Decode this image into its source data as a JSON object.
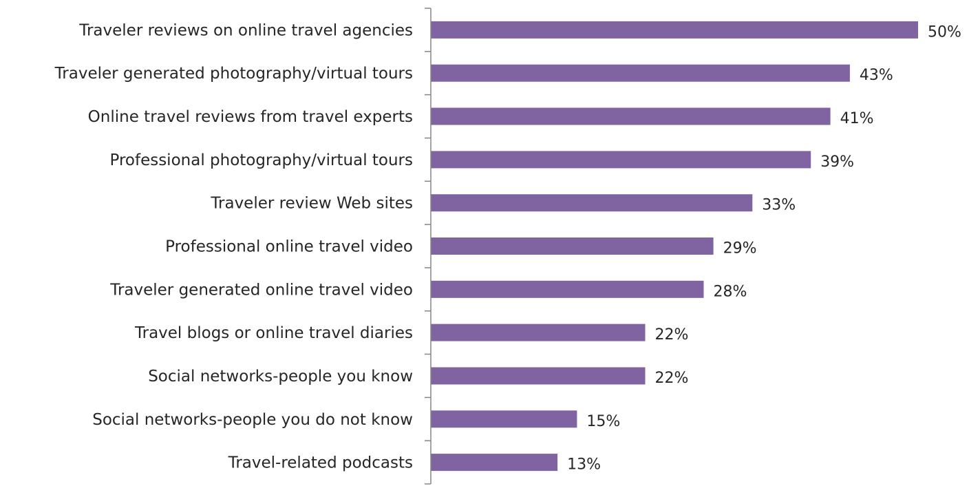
{
  "chart_data": {
    "type": "bar",
    "orientation": "horizontal",
    "categories": [
      "Traveler reviews on online travel agencies",
      "Traveler generated photography/virtual tours",
      "Online travel reviews from travel experts",
      "Professional photography/virtual tours",
      "Traveler review Web sites",
      "Professional online travel video",
      "Traveler generated online travel video",
      "Travel blogs or online travel diaries",
      "Social networks-people you know",
      "Social networks-people you do not know",
      "Travel-related podcasts"
    ],
    "values": [
      50,
      43,
      41,
      39,
      33,
      29,
      28,
      22,
      22,
      15,
      13
    ],
    "value_labels": [
      "50%",
      "43%",
      "41%",
      "39%",
      "33%",
      "29%",
      "28%",
      "22%",
      "22%",
      "15%",
      "13%"
    ],
    "unit": "%",
    "xlim": [
      0,
      50
    ],
    "grid": false,
    "legend": "none",
    "colors": {
      "bar": "#8064a2",
      "axis": "#868686",
      "text": "#262626"
    }
  }
}
